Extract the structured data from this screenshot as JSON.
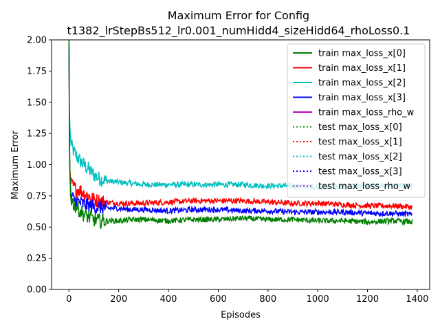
{
  "chart_data": {
    "type": "line",
    "title_line1": "Maximum Error for Config",
    "title_line2": "t1382_lrStepBs512_lr0.001_numHidd4_sizeHidd64_rhoLoss0.1",
    "xlabel": "Episodes",
    "ylabel": "Maximum Error",
    "xlim": [
      -70,
      1450
    ],
    "ylim": [
      0,
      2.0
    ],
    "xticks": [
      0,
      200,
      400,
      600,
      800,
      1000,
      1200,
      1400
    ],
    "xtick_labels": [
      "0",
      "200",
      "400",
      "600",
      "800",
      "1000",
      "1200",
      "1400"
    ],
    "yticks": [
      0,
      0.25,
      0.5,
      0.75,
      1.0,
      1.25,
      1.5,
      1.75,
      2.0
    ],
    "ytick_labels": [
      "0.00",
      "0.25",
      "0.50",
      "0.75",
      "1.00",
      "1.25",
      "1.50",
      "1.75",
      "2.00"
    ],
    "grid": false,
    "legend_position": "top-right",
    "series": [
      {
        "name": "train max_loss_x[0]",
        "color": "#008000",
        "style": "solid",
        "x": [
          0,
          2,
          5,
          10,
          20,
          30,
          40,
          50,
          60,
          70,
          80,
          90,
          100,
          120,
          150,
          200,
          250,
          300,
          400,
          500,
          600,
          700,
          800,
          900,
          1000,
          1100,
          1200,
          1300,
          1380
        ],
        "y": [
          2.0,
          1.2,
          0.8,
          0.72,
          0.68,
          0.66,
          0.64,
          0.62,
          0.6,
          0.59,
          0.58,
          0.57,
          0.56,
          0.55,
          0.55,
          0.55,
          0.56,
          0.56,
          0.55,
          0.56,
          0.56,
          0.57,
          0.56,
          0.56,
          0.55,
          0.55,
          0.54,
          0.55,
          0.54
        ]
      },
      {
        "name": "train max_loss_x[1]",
        "color": "#ff0000",
        "style": "solid",
        "x": [
          0,
          2,
          5,
          10,
          20,
          30,
          40,
          50,
          60,
          70,
          80,
          90,
          100,
          120,
          150,
          200,
          250,
          300,
          400,
          500,
          600,
          700,
          800,
          900,
          1000,
          1100,
          1200,
          1300,
          1380
        ],
        "y": [
          2.0,
          1.1,
          0.88,
          0.84,
          0.82,
          0.8,
          0.8,
          0.79,
          0.77,
          0.76,
          0.75,
          0.73,
          0.72,
          0.71,
          0.7,
          0.69,
          0.69,
          0.69,
          0.7,
          0.71,
          0.71,
          0.71,
          0.7,
          0.69,
          0.69,
          0.68,
          0.67,
          0.67,
          0.66
        ]
      },
      {
        "name": "train max_loss_x[2]",
        "color": "#00bfbf",
        "style": "solid",
        "x": [
          0,
          2,
          5,
          10,
          20,
          30,
          40,
          50,
          60,
          70,
          80,
          90,
          100,
          120,
          150,
          200,
          250,
          300,
          400,
          500,
          600,
          700,
          800,
          900,
          1000,
          1100,
          1200,
          1300,
          1380
        ],
        "y": [
          2.0,
          1.4,
          1.23,
          1.15,
          1.1,
          1.07,
          1.04,
          1.02,
          1.0,
          0.98,
          0.96,
          0.94,
          0.92,
          0.89,
          0.87,
          0.86,
          0.85,
          0.84,
          0.84,
          0.84,
          0.84,
          0.84,
          0.83,
          0.83,
          0.82,
          0.82,
          0.83,
          0.83,
          0.83
        ]
      },
      {
        "name": "train max_loss_x[3]",
        "color": "#0000ff",
        "style": "solid",
        "x": [
          0,
          2,
          5,
          10,
          20,
          30,
          40,
          50,
          60,
          70,
          80,
          90,
          100,
          120,
          150,
          200,
          250,
          300,
          400,
          500,
          600,
          700,
          800,
          900,
          1000,
          1100,
          1200,
          1300,
          1380
        ],
        "y": [
          2.0,
          1.1,
          0.8,
          0.74,
          0.72,
          0.71,
          0.7,
          0.69,
          0.68,
          0.68,
          0.67,
          0.67,
          0.66,
          0.66,
          0.65,
          0.65,
          0.64,
          0.64,
          0.63,
          0.64,
          0.64,
          0.63,
          0.63,
          0.62,
          0.62,
          0.62,
          0.61,
          0.61,
          0.6
        ]
      },
      {
        "name": "train max_loss_rho_w",
        "color": "#bf00bf",
        "style": "solid",
        "x": [],
        "y": []
      },
      {
        "name": "test max_loss_x[0]",
        "color": "#008000",
        "style": "dotted",
        "x": [],
        "y": []
      },
      {
        "name": "test max_loss_x[1]",
        "color": "#ff0000",
        "style": "dotted",
        "x": [],
        "y": []
      },
      {
        "name": "test max_loss_x[2]",
        "color": "#00bfbf",
        "style": "dotted",
        "x": [],
        "y": []
      },
      {
        "name": "test max_loss_x[3]",
        "color": "#0000ff",
        "style": "dotted",
        "x": [],
        "y": []
      },
      {
        "name": "test max_loss_rho_w",
        "color": "#bf00bf",
        "style": "dotted",
        "x": [],
        "y": []
      }
    ]
  }
}
